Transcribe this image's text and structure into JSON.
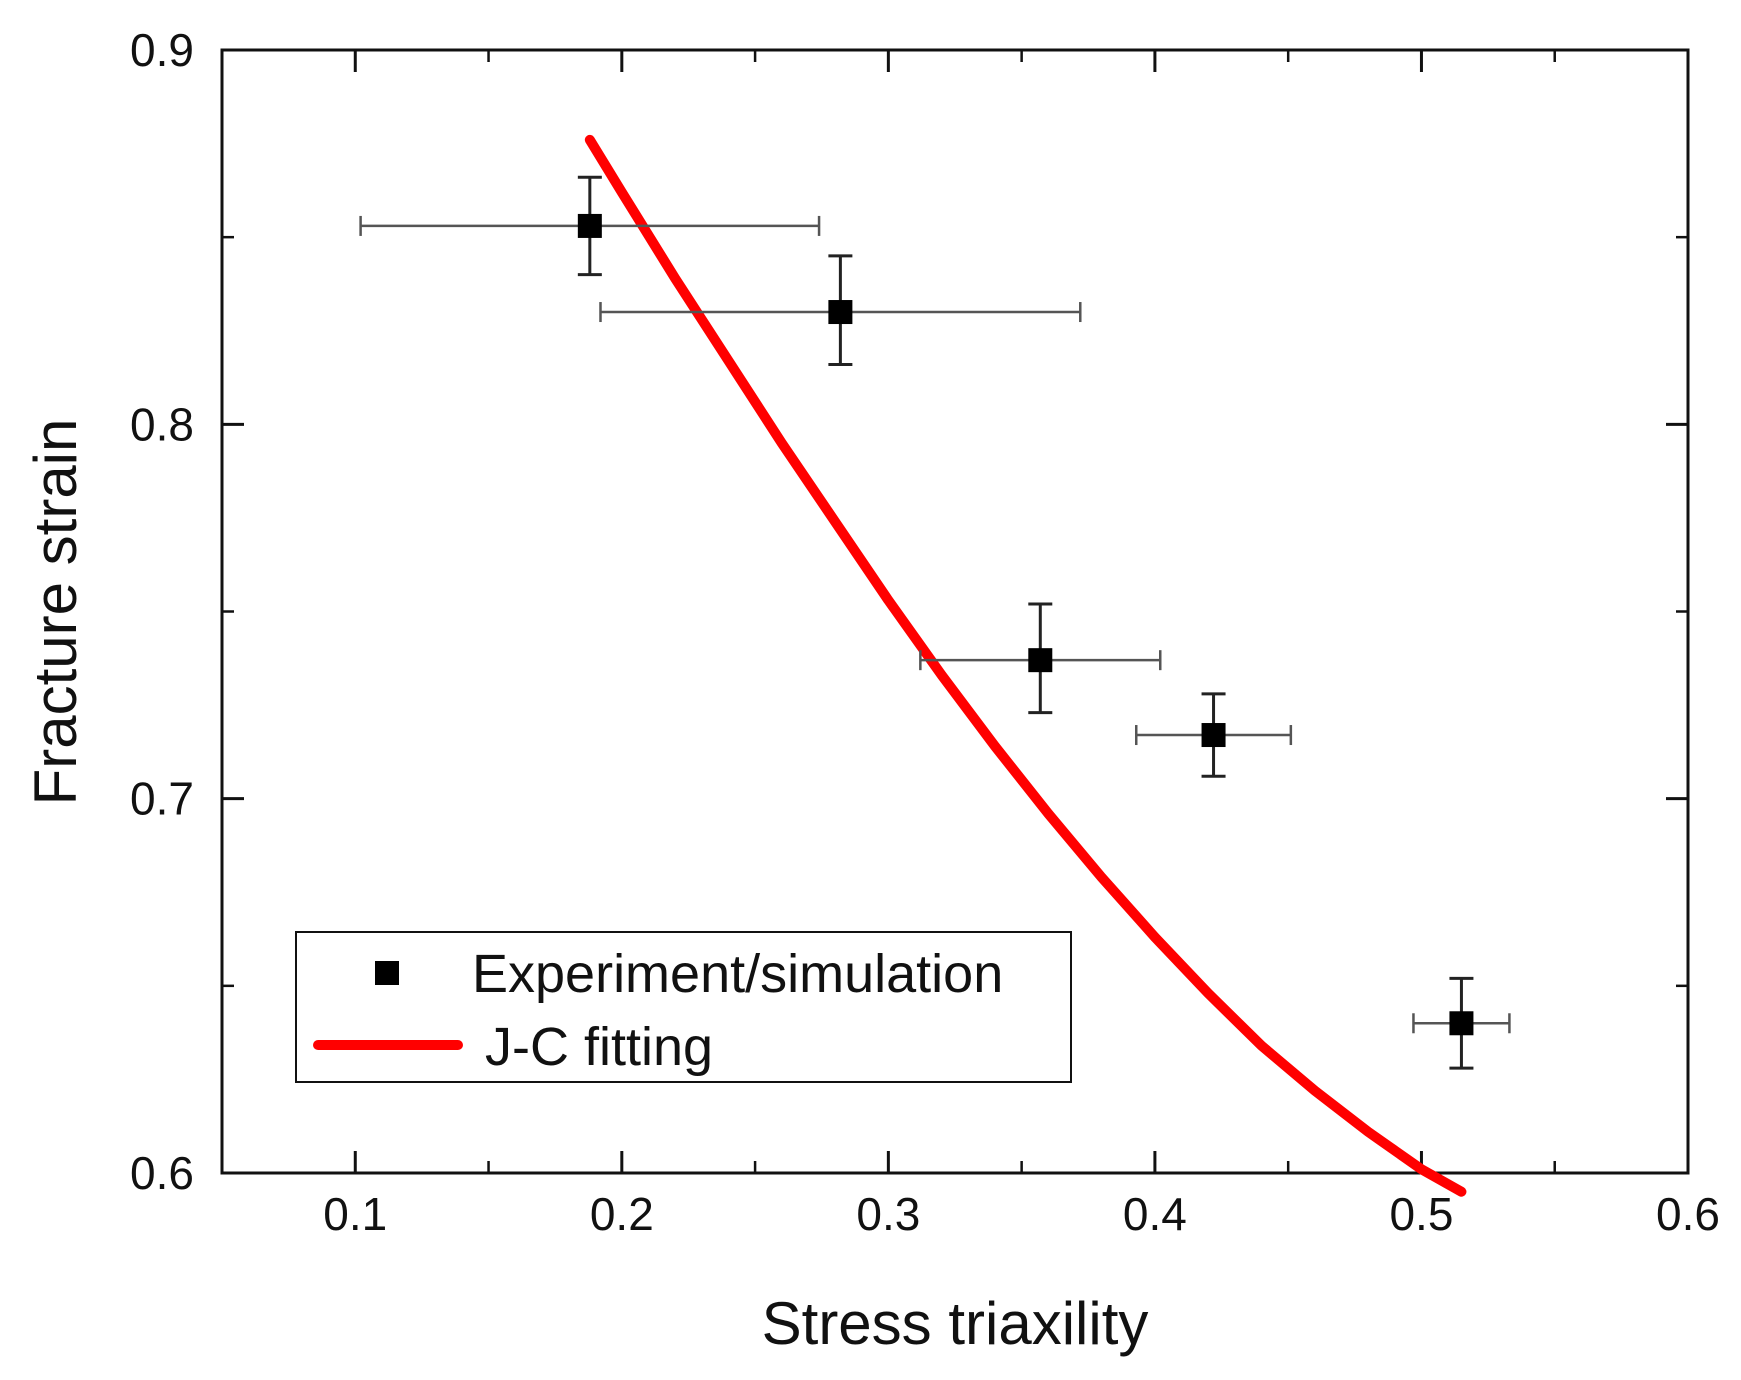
{
  "chart_data": {
    "type": "scatter",
    "title": "",
    "xlabel": "Stress triaxility",
    "ylabel": "Fracture strain",
    "xlim": [
      0.05,
      0.6
    ],
    "ylim": [
      0.6,
      0.9
    ],
    "x_major_ticks": [
      0.1,
      0.2,
      0.3,
      0.4,
      0.5,
      0.6
    ],
    "x_minor_ticks": [
      0.15,
      0.25,
      0.35,
      0.45,
      0.55
    ],
    "x_tick_labels": [
      "0.1",
      "0.2",
      "0.3",
      "0.4",
      "0.5",
      "0.6"
    ],
    "y_major_ticks": [
      0.6,
      0.7,
      0.8,
      0.9
    ],
    "y_minor_ticks": [
      0.65,
      0.75,
      0.85
    ],
    "y_tick_labels": [
      "0.6",
      "0.7",
      "0.8",
      "0.9"
    ],
    "grid": false,
    "legend_position": "bottom-left",
    "series": [
      {
        "name": "Experiment/simulation",
        "kind": "scatter-with-errorbars",
        "marker": "square",
        "color": "#000000",
        "points": [
          {
            "x": 0.188,
            "y": 0.853,
            "xmin": 0.102,
            "xmax": 0.274,
            "ymin": 0.84,
            "ymax": 0.866
          },
          {
            "x": 0.282,
            "y": 0.83,
            "xmin": 0.192,
            "xmax": 0.372,
            "ymin": 0.816,
            "ymax": 0.845
          },
          {
            "x": 0.357,
            "y": 0.737,
            "xmin": 0.312,
            "xmax": 0.402,
            "ymin": 0.723,
            "ymax": 0.752
          },
          {
            "x": 0.422,
            "y": 0.717,
            "xmin": 0.393,
            "xmax": 0.451,
            "ymin": 0.706,
            "ymax": 0.728
          },
          {
            "x": 0.515,
            "y": 0.64,
            "xmin": 0.497,
            "xmax": 0.533,
            "ymin": 0.628,
            "ymax": 0.652
          }
        ]
      },
      {
        "name": "J-C fitting",
        "kind": "line",
        "color": "#ff0000",
        "x": [
          0.188,
          0.2,
          0.22,
          0.24,
          0.26,
          0.28,
          0.3,
          0.32,
          0.34,
          0.36,
          0.38,
          0.4,
          0.42,
          0.44,
          0.46,
          0.48,
          0.5,
          0.515
        ],
        "y": [
          0.876,
          0.862,
          0.839,
          0.817,
          0.795,
          0.774,
          0.753,
          0.733,
          0.714,
          0.696,
          0.679,
          0.663,
          0.648,
          0.634,
          0.622,
          0.611,
          0.601,
          0.595
        ]
      }
    ]
  }
}
